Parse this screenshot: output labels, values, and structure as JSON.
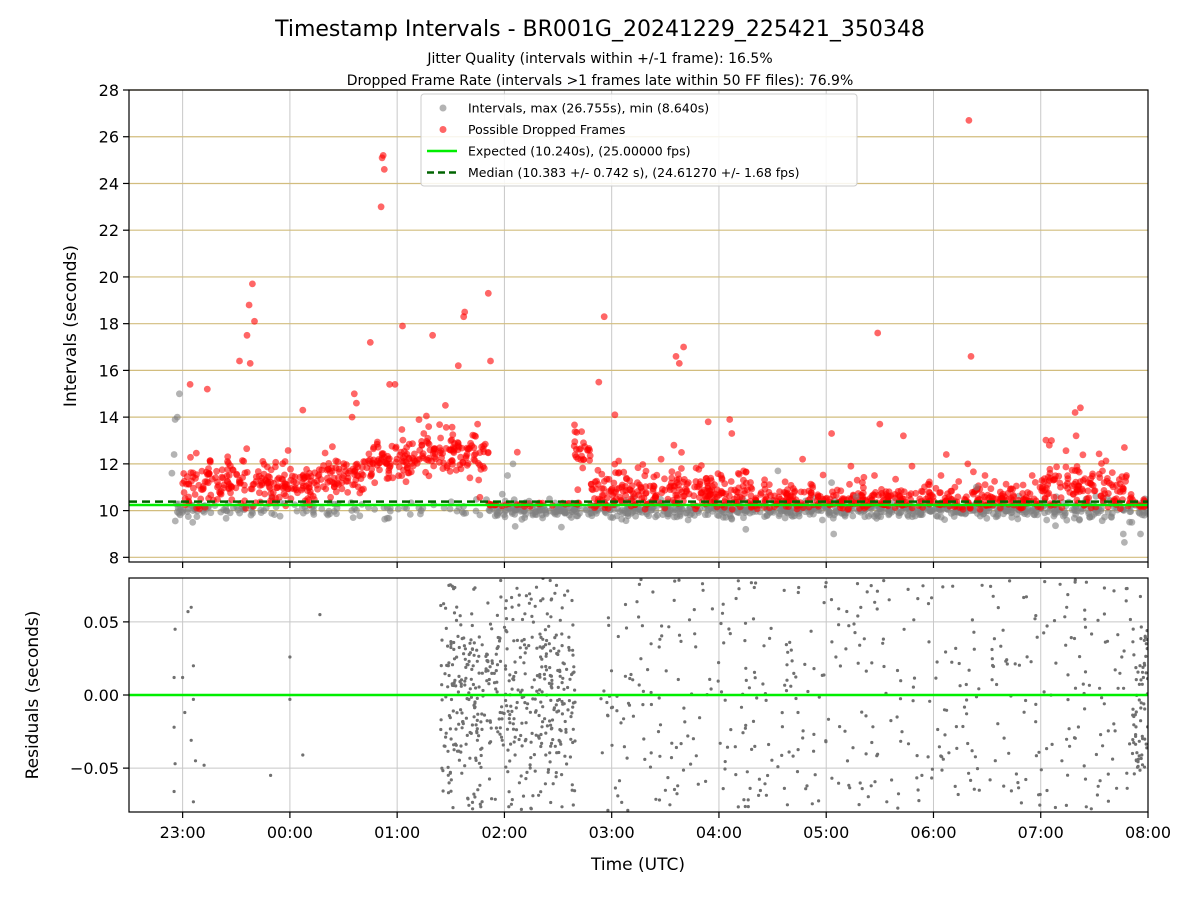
{
  "chart_data": {
    "type": "scatter",
    "title": "Timestamp Intervals - BR001G_20241229_225421_350348",
    "subtitle_lines": [
      "Jitter Quality (intervals within +/-1 frame): 16.5%",
      "Dropped Frame Rate (intervals >1 frames late within 50 FF files): 76.9%"
    ],
    "xlabel": "Time (UTC)",
    "x_ticks": [
      "23:00",
      "00:00",
      "01:00",
      "02:00",
      "03:00",
      "04:00",
      "05:00",
      "06:00",
      "07:00",
      "08:00"
    ],
    "x_tick_hours": [
      23,
      24,
      25,
      26,
      27,
      28,
      29,
      30,
      31,
      32
    ],
    "xlim_hours": [
      22.5,
      32.0
    ],
    "top": {
      "ylabel": "Intervals (seconds)",
      "ylim": [
        7.8,
        28
      ],
      "y_ticks": [
        8,
        10,
        12,
        14,
        16,
        18,
        20,
        22,
        24,
        26,
        28
      ],
      "grid": true,
      "legend_position": "top-center",
      "legend": [
        {
          "label": "Intervals, max (26.755s), min (8.640s)",
          "kind": "marker",
          "color": "#808080"
        },
        {
          "label": "Possible Dropped Frames",
          "kind": "marker",
          "color": "#ff0000"
        },
        {
          "label": "Expected (10.240s), (25.00000 fps)",
          "kind": "line",
          "color": "#00ee00"
        },
        {
          "label": "Median (10.383 +/- 0.742 s), (24.61270 +/- 1.68 fps)",
          "kind": "dashed",
          "color": "#006400"
        }
      ],
      "expected_value": 10.24,
      "median_value": 10.383,
      "colors": {
        "intervals": "#808080",
        "dropped": "#ff0000",
        "expected": "#00ee00",
        "median": "#006400",
        "hgrid": "#d2bd7e",
        "vgrid": "#c8c8c8"
      },
      "dropped_notable": [
        [
          23.07,
          15.4
        ],
        [
          23.23,
          15.2
        ],
        [
          23.53,
          16.4
        ],
        [
          23.6,
          17.5
        ],
        [
          23.62,
          18.8
        ],
        [
          23.65,
          19.7
        ],
        [
          23.63,
          16.3
        ],
        [
          23.67,
          18.1
        ],
        [
          24.12,
          14.3
        ],
        [
          24.58,
          14.0
        ],
        [
          24.6,
          15.0
        ],
        [
          24.62,
          14.6
        ],
        [
          24.75,
          17.2
        ],
        [
          24.85,
          23.0
        ],
        [
          24.87,
          25.2
        ],
        [
          24.86,
          25.1
        ],
        [
          24.88,
          24.6
        ],
        [
          24.93,
          15.4
        ],
        [
          24.98,
          15.4
        ],
        [
          25.05,
          17.9
        ],
        [
          25.33,
          17.5
        ],
        [
          25.45,
          14.5
        ],
        [
          25.62,
          18.3
        ],
        [
          25.63,
          18.5
        ],
        [
          25.57,
          16.2
        ],
        [
          25.75,
          13.7
        ],
        [
          25.85,
          19.3
        ],
        [
          25.87,
          16.4
        ],
        [
          26.12,
          12.5
        ],
        [
          26.93,
          18.3
        ],
        [
          26.88,
          15.5
        ],
        [
          27.03,
          14.1
        ],
        [
          27.6,
          16.6
        ],
        [
          27.67,
          17.0
        ],
        [
          27.63,
          16.3
        ],
        [
          27.58,
          12.8
        ],
        [
          27.9,
          13.8
        ],
        [
          28.1,
          13.9
        ],
        [
          28.12,
          13.3
        ],
        [
          28.23,
          11.7
        ],
        [
          28.78,
          12.2
        ],
        [
          29.05,
          13.3
        ],
        [
          29.23,
          11.9
        ],
        [
          29.45,
          11.5
        ],
        [
          29.48,
          17.6
        ],
        [
          29.5,
          13.7
        ],
        [
          29.72,
          13.2
        ],
        [
          29.8,
          11.9
        ],
        [
          30.07,
          11.5
        ],
        [
          30.12,
          12.4
        ],
        [
          30.2,
          11.0
        ],
        [
          30.32,
          12.0
        ],
        [
          30.33,
          26.7
        ],
        [
          30.35,
          16.6
        ],
        [
          30.48,
          11.5
        ],
        [
          30.92,
          11.5
        ],
        [
          31.08,
          12.8
        ],
        [
          31.1,
          13.0
        ],
        [
          31.32,
          14.2
        ],
        [
          31.37,
          14.4
        ],
        [
          31.33,
          13.2
        ],
        [
          31.78,
          12.7
        ],
        [
          31.8,
          11.5
        ]
      ],
      "gray_notable": [
        [
          22.93,
          13.9
        ],
        [
          22.97,
          15.0
        ],
        [
          22.95,
          14.0
        ],
        [
          22.92,
          12.4
        ],
        [
          22.9,
          11.6
        ],
        [
          26.03,
          11.5
        ],
        [
          26.08,
          12.0
        ],
        [
          25.98,
          10.7
        ],
        [
          26.23,
          10.4
        ],
        [
          28.55,
          11.7
        ],
        [
          29.05,
          11.2
        ],
        [
          29.28,
          10.6
        ],
        [
          30.4,
          11.0
        ],
        [
          31.77,
          9.0
        ],
        [
          31.78,
          8.64
        ],
        [
          31.85,
          9.5
        ],
        [
          31.93,
          9.0
        ],
        [
          26.42,
          10.5
        ],
        [
          28.25,
          9.2
        ],
        [
          29.07,
          9.0
        ]
      ]
    },
    "bottom": {
      "ylabel": "Residuals (seconds)",
      "ylim": [
        -0.08,
        0.08
      ],
      "y_ticks": [
        0.05,
        0.0,
        -0.05
      ],
      "y_tick_labels": [
        "0.05",
        "0.00",
        "−0.05"
      ],
      "zero_line_color": "#00ee00",
      "points_color": "#707070"
    }
  }
}
